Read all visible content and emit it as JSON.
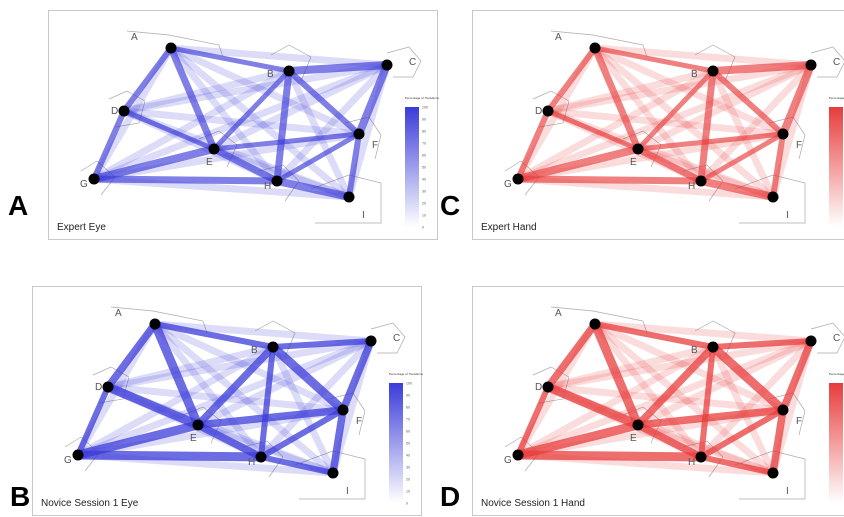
{
  "panels": [
    {
      "id": "A",
      "caption": "Expert Eye",
      "color": "#3b3bd9",
      "light": "#d6d6f7",
      "legend_title": "Percentage of Transitions",
      "legend_ticks": [
        "100",
        "90",
        "80",
        "70",
        "60",
        "50",
        "40",
        "30",
        "20",
        "10",
        "0"
      ],
      "show_legend": true
    },
    {
      "id": "B",
      "caption": "Novice Session 1 Eye",
      "color": "#3b3bd9",
      "light": "#d6d6f7",
      "legend_title": "Percentage of Transitions",
      "legend_ticks": [
        "100",
        "90",
        "80",
        "70",
        "60",
        "50",
        "40",
        "30",
        "20",
        "10",
        "0"
      ],
      "show_legend": true
    },
    {
      "id": "C",
      "caption": "Expert Hand",
      "color": "#e83c3c",
      "light": "#f7d6d6",
      "legend_title": "Percentage of Transitions",
      "legend_ticks": [],
      "show_legend": true
    },
    {
      "id": "D",
      "caption": "Novice Session 1 Hand",
      "color": "#e83c3c",
      "light": "#f7d6d6",
      "legend_title": "Percentage of Transitions",
      "legend_ticks": [],
      "show_legend": true
    }
  ],
  "nodes": [
    "A",
    "B",
    "C",
    "D",
    "E",
    "F",
    "G",
    "H",
    "I"
  ]
}
